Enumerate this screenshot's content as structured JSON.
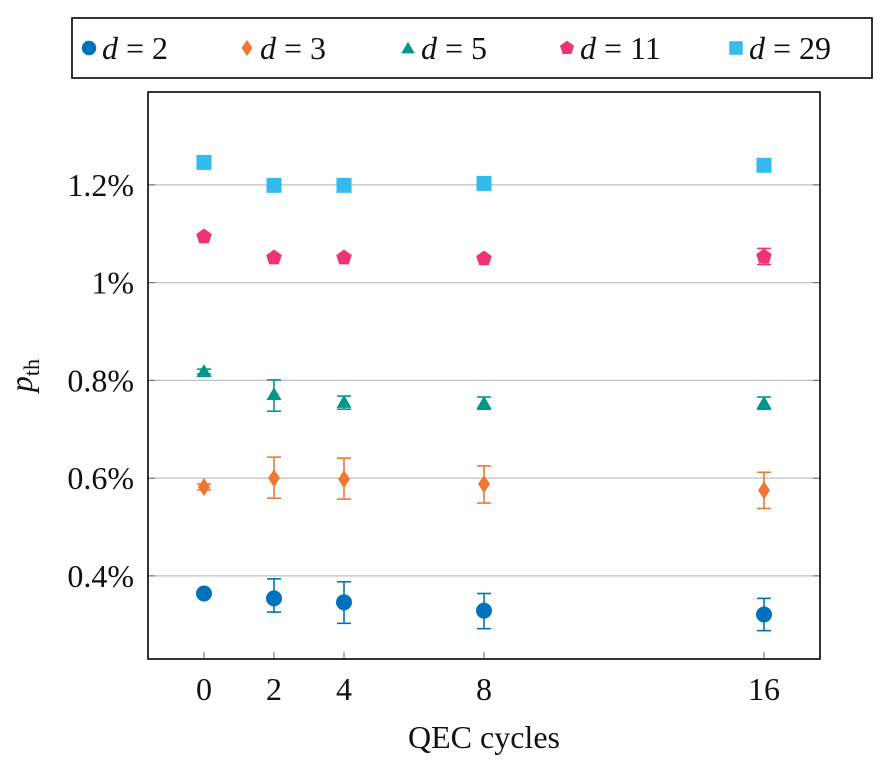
{
  "chart_data": {
    "type": "scatter",
    "title": "",
    "xlabel": "QEC cycles",
    "ylabel": "p_th",
    "ylabel_main": "p",
    "ylabel_sub": "th",
    "x_ticks": [
      0,
      2,
      4,
      8,
      16
    ],
    "x_tick_labels": [
      "0",
      "2",
      "4",
      "8",
      "16"
    ],
    "y_ticks": [
      0.4,
      0.6,
      0.8,
      1.0,
      1.2
    ],
    "y_tick_labels": [
      "0.4%",
      "0.6%",
      "0.8%",
      "1%",
      "1.2%"
    ],
    "xlim": [
      -1.6,
      17.6
    ],
    "ylim": [
      0.23,
      1.39
    ],
    "y_unit": "%",
    "grid": "horizontal major",
    "legend_position": "top (outside, above plot)",
    "series": [
      {
        "name": "d = 2",
        "var": "d",
        "value": "2",
        "marker": "circle",
        "color": "#0072BD",
        "x": [
          0,
          2,
          4,
          8,
          16
        ],
        "y": [
          0.364,
          0.354,
          0.346,
          0.329,
          0.321
        ],
        "err_low": [
          0.364,
          0.326,
          0.303,
          0.292,
          0.288
        ],
        "err_high": [
          0.364,
          0.394,
          0.388,
          0.364,
          0.354
        ]
      },
      {
        "name": "d = 3",
        "var": "d",
        "value": "3",
        "marker": "diamond",
        "color": "#EE7733",
        "x": [
          0,
          2,
          4,
          8,
          16
        ],
        "y": [
          0.582,
          0.6,
          0.598,
          0.588,
          0.575
        ],
        "err_low": [
          0.576,
          0.559,
          0.557,
          0.549,
          0.538
        ],
        "err_high": [
          0.588,
          0.643,
          0.641,
          0.625,
          0.612
        ]
      },
      {
        "name": "d = 5",
        "var": "d",
        "value": "5",
        "marker": "triangle",
        "color": "#009988",
        "x": [
          0,
          2,
          4,
          8,
          16
        ],
        "y": [
          0.819,
          0.772,
          0.756,
          0.754,
          0.754
        ],
        "err_low": [
          0.813,
          0.737,
          0.741,
          0.741,
          0.741
        ],
        "err_high": [
          0.823,
          0.801,
          0.768,
          0.766,
          0.766
        ]
      },
      {
        "name": "d = 11",
        "var": "d",
        "value": "11",
        "marker": "pentagon",
        "color": "#EE3377",
        "x": [
          0,
          2,
          4,
          8,
          16
        ],
        "y": [
          1.094,
          1.051,
          1.051,
          1.049,
          1.053
        ],
        "err_low": [
          1.094,
          1.051,
          1.051,
          1.049,
          1.037
        ],
        "err_high": [
          1.094,
          1.051,
          1.051,
          1.049,
          1.07
        ]
      },
      {
        "name": "d = 29",
        "var": "d",
        "value": "29",
        "marker": "square",
        "color": "#33BBEE",
        "x": [
          0,
          2,
          4,
          8,
          16
        ],
        "y": [
          1.246,
          1.199,
          1.199,
          1.203,
          1.24
        ],
        "err_low": [
          1.246,
          1.199,
          1.199,
          1.203,
          1.228
        ],
        "err_high": [
          1.246,
          1.199,
          1.199,
          1.203,
          1.252
        ]
      }
    ]
  },
  "colors": {
    "axis": "#000000",
    "grid": "#c0c0c0",
    "tick": "#666666"
  }
}
